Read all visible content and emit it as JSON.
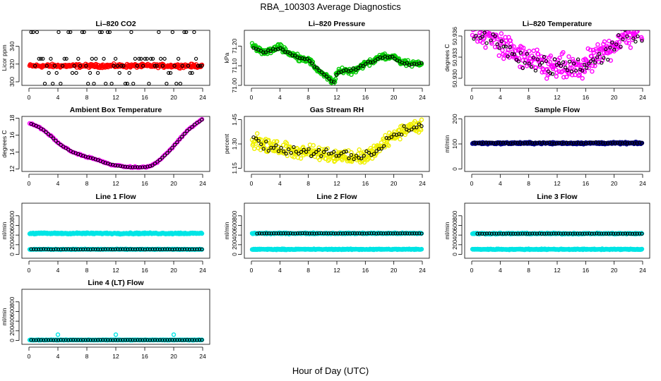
{
  "main_title": "RBA_100303  Average Diagnostics",
  "x_axis_label": "Hour of Day (UTC)",
  "colors": {
    "red": "#ff0000",
    "green": "#00cc00",
    "magenta": "#ff00ff",
    "yellow": "#f0f000",
    "navy": "#000088",
    "cyan": "#00e5e5",
    "black": "#000000"
  },
  "chart_data": [
    {
      "type": "scatter",
      "title": "Li–820 CO2",
      "ylabel": "Licor ppm",
      "xlim": [
        0,
        24
      ],
      "ylim": [
        296,
        358
      ],
      "xticks": [
        0,
        4,
        8,
        12,
        16,
        20,
        24
      ],
      "xtick_labels": [
        "0",
        "4",
        "8",
        "12",
        "16",
        "20",
        "24"
      ],
      "yticks": [
        300,
        320,
        340
      ],
      "ytick_labels": [
        "300",
        "320",
        "340"
      ],
      "series": [
        {
          "name": "all",
          "color": "#ff0000",
          "kind": "band",
          "x_start": 0.1,
          "x_end": 23.9,
          "center": 318,
          "spread": 1.6
        },
        {
          "name": "hourly",
          "color": "#000000",
          "kind": "discrete",
          "x_start": 0.3,
          "x_end": 23.9,
          "count": 88,
          "levels": [
            298,
            310,
            318,
            326,
            356
          ]
        }
      ]
    },
    {
      "type": "scatter",
      "title": "Li–820 Pressure",
      "ylabel": "kPa",
      "xlim": [
        0,
        24
      ],
      "ylim": [
        71.0,
        71.28
      ],
      "xticks": [
        0,
        4,
        8,
        12,
        16,
        20,
        24
      ],
      "xtick_labels": [
        "0",
        "4",
        "8",
        "12",
        "16",
        "20",
        "24"
      ],
      "yticks": [
        71.0,
        71.1,
        71.2
      ],
      "ytick_labels": [
        "71.00",
        "71.10",
        "71.20"
      ],
      "series": [
        {
          "name": "all",
          "color": "#00cc00",
          "kind": "curve",
          "x_start": 0.1,
          "x_end": 23.9,
          "spread": 0.012,
          "x": [
            0,
            1,
            2,
            3,
            4,
            5,
            6,
            7,
            8,
            9,
            10,
            11,
            11.5,
            12,
            13,
            14,
            15,
            16,
            17,
            18,
            19,
            20,
            21,
            22,
            23,
            24
          ],
          "y": [
            71.21,
            71.18,
            71.17,
            71.18,
            71.2,
            71.17,
            71.15,
            71.14,
            71.13,
            71.09,
            71.06,
            71.03,
            71.01,
            71.06,
            71.08,
            71.07,
            71.09,
            71.11,
            71.12,
            71.15,
            71.14,
            71.15,
            71.12,
            71.11,
            71.11,
            71.11
          ]
        },
        {
          "name": "hourly",
          "color": "#000000",
          "kind": "curve",
          "x_start": 0.3,
          "x_end": 23.9,
          "count": 70,
          "spread": 0.006,
          "x": [
            0,
            1,
            2,
            3,
            4,
            5,
            6,
            7,
            8,
            9,
            10,
            11,
            11.5,
            12,
            13,
            14,
            15,
            16,
            17,
            18,
            19,
            20,
            21,
            22,
            23,
            24
          ],
          "y": [
            71.2,
            71.18,
            71.17,
            71.18,
            71.19,
            71.17,
            71.15,
            71.14,
            71.13,
            71.09,
            71.06,
            71.03,
            71.01,
            71.06,
            71.08,
            71.08,
            71.09,
            71.11,
            71.12,
            71.14,
            71.14,
            71.14,
            71.12,
            71.11,
            71.11,
            71.11
          ]
        }
      ]
    },
    {
      "type": "scatter",
      "title": "Li–820 Temperature",
      "ylabel": "degrees C",
      "xlim": [
        0,
        24
      ],
      "ylim": [
        50.929,
        50.9368
      ],
      "xticks": [
        0,
        4,
        8,
        12,
        16,
        20,
        24
      ],
      "xtick_labels": [
        "0",
        "4",
        "8",
        "12",
        "16",
        "20",
        "24"
      ],
      "yticks": [
        50.93,
        50.933,
        50.936
      ],
      "ytick_labels": [
        "50.930",
        "50.933",
        "50.936"
      ],
      "series": [
        {
          "name": "all",
          "color": "#ff00ff",
          "kind": "curve",
          "x_start": 0.1,
          "x_end": 23.9,
          "spread": 0.0015,
          "x": [
            0,
            2,
            4,
            6,
            8,
            10,
            12,
            14,
            16,
            18,
            20,
            22,
            24
          ],
          "y": [
            50.9368,
            50.9362,
            50.935,
            50.9335,
            50.9325,
            50.9318,
            50.9315,
            50.9312,
            50.9318,
            50.9332,
            50.935,
            50.9362,
            50.9368
          ]
        },
        {
          "name": "hourly",
          "color": "#000000",
          "kind": "curve",
          "x_start": 0.3,
          "x_end": 23.9,
          "count": 80,
          "spread": 0.0012,
          "x": [
            0,
            2,
            4,
            6,
            8,
            10,
            12,
            14,
            16,
            18,
            20,
            22,
            24
          ],
          "y": [
            50.9366,
            50.936,
            50.935,
            50.9336,
            50.9326,
            50.9319,
            50.9316,
            50.9314,
            50.9319,
            50.9333,
            50.935,
            50.936,
            50.9366
          ]
        }
      ]
    },
    {
      "type": "scatter",
      "title": "Ambient Box Temperature",
      "ylabel": "degrees C",
      "xlim": [
        0,
        24
      ],
      "ylim": [
        11.7,
        18.2
      ],
      "xticks": [
        0,
        4,
        8,
        12,
        16,
        20,
        24
      ],
      "xtick_labels": [
        "0",
        "4",
        "8",
        "12",
        "16",
        "20",
        "24"
      ],
      "yticks": [
        12,
        14,
        16,
        18
      ],
      "ytick_labels": [
        "12",
        "14",
        "16",
        "18"
      ],
      "series": [
        {
          "name": "all",
          "color": "#ff00ff",
          "kind": "curve",
          "x_start": 0.1,
          "x_end": 23.9,
          "count": 140,
          "spread": 0.06,
          "x": [
            0,
            1,
            2,
            3,
            4,
            5,
            6,
            7,
            8,
            9,
            10,
            11,
            12,
            13,
            14,
            15,
            16,
            17,
            18,
            19,
            20,
            21,
            22,
            23,
            24
          ],
          "y": [
            17.4,
            17.1,
            16.6,
            15.9,
            15.1,
            14.5,
            14.0,
            13.7,
            13.4,
            13.2,
            12.9,
            12.6,
            12.4,
            12.3,
            12.2,
            12.2,
            12.2,
            12.4,
            13.0,
            13.8,
            14.7,
            15.7,
            16.6,
            17.3,
            17.9
          ]
        },
        {
          "name": "hourly",
          "color": "#000000",
          "kind": "curve",
          "x_start": 0.3,
          "x_end": 23.9,
          "count": 70,
          "spread": 0.02,
          "x": [
            0,
            1,
            2,
            3,
            4,
            5,
            6,
            7,
            8,
            9,
            10,
            11,
            12,
            13,
            14,
            15,
            16,
            17,
            18,
            19,
            20,
            21,
            22,
            23,
            24
          ],
          "y": [
            17.4,
            17.1,
            16.6,
            15.9,
            15.1,
            14.5,
            14.0,
            13.7,
            13.4,
            13.2,
            12.9,
            12.6,
            12.4,
            12.3,
            12.2,
            12.2,
            12.2,
            12.4,
            13.0,
            13.8,
            14.7,
            15.7,
            16.6,
            17.3,
            17.9
          ]
        }
      ]
    },
    {
      "type": "scatter",
      "title": "Gas Stream RH",
      "ylabel": "percent",
      "xlim": [
        0,
        24
      ],
      "ylim": [
        1.13,
        1.47
      ],
      "xticks": [
        0,
        4,
        8,
        12,
        16,
        20,
        24
      ],
      "xtick_labels": [
        "0",
        "4",
        "8",
        "12",
        "16",
        "20",
        "24"
      ],
      "yticks": [
        1.15,
        1.3,
        1.45
      ],
      "ytick_labels": [
        "1.15",
        "1.30",
        "1.45"
      ],
      "series": [
        {
          "name": "all",
          "color": "#f0f000",
          "kind": "curve",
          "x_start": 0.1,
          "x_end": 23.9,
          "spread": 0.035,
          "x": [
            0,
            2,
            4,
            6,
            8,
            10,
            12,
            14,
            16,
            17,
            18,
            20,
            22,
            24
          ],
          "y": [
            1.33,
            1.29,
            1.27,
            1.26,
            1.25,
            1.24,
            1.23,
            1.22,
            1.22,
            1.24,
            1.28,
            1.35,
            1.4,
            1.41
          ]
        },
        {
          "name": "hourly",
          "color": "#000000",
          "kind": "curve",
          "x_start": 0.3,
          "x_end": 23.9,
          "count": 68,
          "spread": 0.025,
          "x": [
            0,
            2,
            4,
            6,
            8,
            10,
            12,
            14,
            16,
            17,
            18,
            20,
            22,
            24
          ],
          "y": [
            1.33,
            1.29,
            1.27,
            1.26,
            1.25,
            1.24,
            1.23,
            1.22,
            1.22,
            1.24,
            1.28,
            1.35,
            1.4,
            1.41
          ]
        }
      ]
    },
    {
      "type": "scatter",
      "title": "Sample Flow",
      "ylabel": "ml/min",
      "xlim": [
        0,
        24
      ],
      "ylim": [
        -10,
        210
      ],
      "xticks": [
        0,
        4,
        8,
        12,
        16,
        20,
        24
      ],
      "xtick_labels": [
        "0",
        "4",
        "8",
        "12",
        "16",
        "20",
        "24"
      ],
      "yticks": [
        0,
        100,
        200
      ],
      "ytick_labels": [
        "0",
        "100",
        "200"
      ],
      "series": [
        {
          "name": "all",
          "color": "#000088",
          "kind": "band",
          "x_start": 0.1,
          "x_end": 23.9,
          "center": 103,
          "spread": 3
        },
        {
          "name": "hourly",
          "color": "#000000",
          "kind": "band",
          "x_start": 0.3,
          "x_end": 23.9,
          "count": 70,
          "center": 104,
          "spread": 1.5
        }
      ]
    },
    {
      "type": "scatter",
      "title": "Line 1 Flow",
      "ylabel": "ml/min",
      "xlim": [
        0,
        24
      ],
      "ylim": [
        -80,
        1060
      ],
      "xticks": [
        0,
        4,
        8,
        12,
        16,
        20,
        24
      ],
      "xtick_labels": [
        "0",
        "4",
        "8",
        "12",
        "16",
        "20",
        "24"
      ],
      "yticks": [
        0,
        200,
        400,
        600,
        800
      ],
      "ytick_labels": [
        "0",
        "200",
        "400",
        "600",
        "800"
      ],
      "series": [
        {
          "name": "all",
          "color": "#00e5e5",
          "kind": "band",
          "x_start": 0.1,
          "x_end": 23.9,
          "center": 435,
          "spread": 12
        },
        {
          "name": "all-low",
          "color": "#00e5e5",
          "kind": "band",
          "x_start": 0.1,
          "x_end": 23.9,
          "center": 105,
          "spread": 6
        },
        {
          "name": "hourly",
          "color": "#000000",
          "kind": "band",
          "x_start": 0.3,
          "x_end": 23.9,
          "count": 70,
          "center": 105,
          "spread": 3
        }
      ]
    },
    {
      "type": "scatter",
      "title": "Line 2 Flow",
      "ylabel": "ml/min",
      "xlim": [
        0,
        24
      ],
      "ylim": [
        -80,
        1060
      ],
      "xticks": [
        0,
        4,
        8,
        12,
        16,
        20,
        24
      ],
      "xtick_labels": [
        "0",
        "4",
        "8",
        "12",
        "16",
        "20",
        "24"
      ],
      "yticks": [
        0,
        200,
        400,
        600,
        800
      ],
      "ytick_labels": [
        "0",
        "200",
        "400",
        "600",
        "800"
      ],
      "series": [
        {
          "name": "all",
          "color": "#00e5e5",
          "kind": "band",
          "x_start": 0.1,
          "x_end": 23.9,
          "center": 435,
          "spread": 10
        },
        {
          "name": "all-low",
          "color": "#00e5e5",
          "kind": "band",
          "x_start": 0.1,
          "x_end": 23.9,
          "center": 105,
          "spread": 8
        },
        {
          "name": "hourly",
          "color": "#000000",
          "kind": "band",
          "x_start": 0.8,
          "x_end": 23.9,
          "count": 70,
          "center": 435,
          "spread": 3
        }
      ]
    },
    {
      "type": "scatter",
      "title": "Line 3 Flow",
      "ylabel": "ml/min",
      "xlim": [
        0,
        24
      ],
      "ylim": [
        -80,
        1060
      ],
      "xticks": [
        0,
        4,
        8,
        12,
        16,
        20,
        24
      ],
      "xtick_labels": [
        "0",
        "4",
        "8",
        "12",
        "16",
        "20",
        "24"
      ],
      "yticks": [
        0,
        200,
        400,
        600,
        800
      ],
      "ytick_labels": [
        "0",
        "200",
        "400",
        "600",
        "800"
      ],
      "series": [
        {
          "name": "all",
          "color": "#00e5e5",
          "kind": "band",
          "x_start": 0.1,
          "x_end": 23.9,
          "center": 430,
          "spread": 10
        },
        {
          "name": "all-low",
          "color": "#00e5e5",
          "kind": "band",
          "x_start": 0.1,
          "x_end": 23.9,
          "center": 105,
          "spread": 8
        },
        {
          "name": "hourly",
          "color": "#000000",
          "kind": "band",
          "x_start": 0.8,
          "x_end": 23.9,
          "count": 70,
          "center": 430,
          "spread": 3
        }
      ]
    },
    {
      "type": "scatter",
      "title": "Line 4 (LT) Flow",
      "ylabel": "ml/min",
      "xlim": [
        0,
        24
      ],
      "ylim": [
        -80,
        1060
      ],
      "xticks": [
        0,
        4,
        8,
        12,
        16,
        20,
        24
      ],
      "xtick_labels": [
        "0",
        "4",
        "8",
        "12",
        "16",
        "20",
        "24"
      ],
      "yticks": [
        0,
        200,
        400,
        600,
        800
      ],
      "ytick_labels": [
        "0",
        "200",
        "400",
        "600",
        "800"
      ],
      "series": [
        {
          "name": "all",
          "color": "#00e5e5",
          "kind": "band",
          "x_start": 0.1,
          "x_end": 23.9,
          "center": 10,
          "spread": 4
        },
        {
          "name": "spikes",
          "color": "#00e5e5",
          "kind": "points",
          "x": [
            4,
            12,
            20
          ],
          "y": [
            120,
            120,
            120
          ]
        },
        {
          "name": "hourly",
          "color": "#000000",
          "kind": "band",
          "x_start": 0.3,
          "x_end": 23.9,
          "count": 70,
          "center": 10,
          "spread": 2
        }
      ]
    }
  ]
}
